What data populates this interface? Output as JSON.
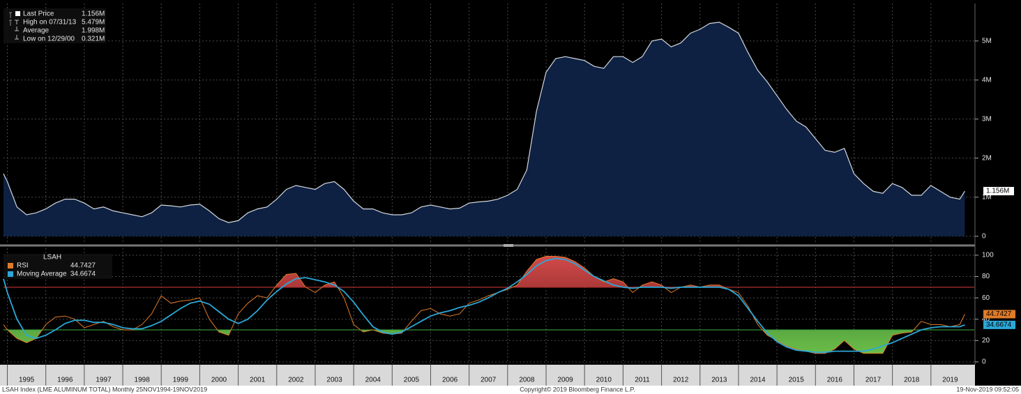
{
  "chart_data": [
    {
      "type": "area",
      "color": "#0e2142",
      "line_color": "#d4d8e0",
      "legend": [
        {
          "label": "Last Price",
          "text": "1.156M"
        },
        {
          "label": "High on 07/31/13",
          "text": "5.479M"
        },
        {
          "label": "Average",
          "text": "1.998M"
        },
        {
          "label": "Low on 12/29/00",
          "text": "0.321M"
        }
      ],
      "x": [
        1994.9,
        1995,
        1995.25,
        1995.5,
        1995.75,
        1996,
        1996.25,
        1996.5,
        1996.75,
        1997,
        1997.25,
        1997.5,
        1997.75,
        1998,
        1998.25,
        1998.5,
        1998.75,
        1999,
        1999.25,
        1999.5,
        1999.75,
        2000,
        2000.25,
        2000.5,
        2000.75,
        2001,
        2001.25,
        2001.5,
        2001.75,
        2002,
        2002.25,
        2002.5,
        2002.75,
        2003,
        2003.25,
        2003.5,
        2003.75,
        2004,
        2004.25,
        2004.5,
        2004.75,
        2005,
        2005.25,
        2005.5,
        2005.75,
        2006,
        2006.25,
        2006.5,
        2006.75,
        2007,
        2007.25,
        2007.5,
        2007.75,
        2008,
        2008.25,
        2008.5,
        2008.75,
        2009,
        2009.25,
        2009.5,
        2009.75,
        2010,
        2010.25,
        2010.5,
        2010.75,
        2011,
        2011.25,
        2011.5,
        2011.75,
        2012,
        2012.25,
        2012.5,
        2012.75,
        2013,
        2013.25,
        2013.5,
        2013.75,
        2014,
        2014.25,
        2014.5,
        2014.75,
        2015,
        2015.25,
        2015.5,
        2015.75,
        2016,
        2016.25,
        2016.5,
        2016.75,
        2017,
        2017.25,
        2017.5,
        2017.75,
        2018,
        2018.25,
        2018.5,
        2018.75,
        2019,
        2019.25,
        2019.5,
        2019.75,
        2019.88
      ],
      "values": [
        1.6,
        1.4,
        0.75,
        0.55,
        0.6,
        0.7,
        0.85,
        0.95,
        0.95,
        0.85,
        0.7,
        0.75,
        0.65,
        0.6,
        0.55,
        0.5,
        0.6,
        0.8,
        0.78,
        0.75,
        0.8,
        0.82,
        0.65,
        0.45,
        0.35,
        0.4,
        0.6,
        0.7,
        0.75,
        0.95,
        1.2,
        1.3,
        1.25,
        1.2,
        1.35,
        1.4,
        1.2,
        0.9,
        0.7,
        0.7,
        0.6,
        0.55,
        0.55,
        0.6,
        0.75,
        0.8,
        0.75,
        0.7,
        0.72,
        0.85,
        0.88,
        0.9,
        0.95,
        1.05,
        1.2,
        1.7,
        3.2,
        4.2,
        4.55,
        4.6,
        4.55,
        4.5,
        4.35,
        4.3,
        4.6,
        4.6,
        4.45,
        4.6,
        5.0,
        5.05,
        4.85,
        4.95,
        5.2,
        5.3,
        5.45,
        5.479,
        5.35,
        5.2,
        4.7,
        4.25,
        3.95,
        3.6,
        3.25,
        2.95,
        2.8,
        2.5,
        2.2,
        2.15,
        2.25,
        1.6,
        1.35,
        1.15,
        1.1,
        1.35,
        1.25,
        1.05,
        1.05,
        1.3,
        1.15,
        1.0,
        0.95,
        1.156
      ],
      "xlim": [
        1994.9,
        2020
      ],
      "xticks": [
        1995,
        1996,
        1997,
        1998,
        1999,
        2000,
        2001,
        2002,
        2003,
        2004,
        2005,
        2006,
        2007,
        2008,
        2009,
        2010,
        2011,
        2012,
        2013,
        2014,
        2015,
        2016,
        2017,
        2018,
        2019
      ],
      "ylim": [
        -0.2,
        5.96
      ],
      "yticks": [
        0,
        {
          "value": 1,
          "label": "1M"
        },
        {
          "value": 2,
          "label": "2M"
        },
        {
          "value": 3,
          "label": "3M"
        },
        {
          "value": 4,
          "label": "4M"
        },
        {
          "value": 5,
          "label": "5M"
        }
      ],
      "grid": true
    },
    {
      "type": "line",
      "title": "LSAH",
      "x": [
        1994.9,
        1995,
        1995.25,
        1995.5,
        1995.75,
        1996,
        1996.25,
        1996.5,
        1996.75,
        1997,
        1997.25,
        1997.5,
        1997.75,
        1998,
        1998.25,
        1998.5,
        1998.75,
        1999,
        1999.25,
        1999.5,
        1999.75,
        2000,
        2000.25,
        2000.5,
        2000.75,
        2001,
        2001.25,
        2001.5,
        2001.75,
        2002,
        2002.25,
        2002.5,
        2002.75,
        2003,
        2003.25,
        2003.5,
        2003.75,
        2004,
        2004.25,
        2004.5,
        2004.75,
        2005,
        2005.25,
        2005.5,
        2005.75,
        2006,
        2006.25,
        2006.5,
        2006.75,
        2007,
        2007.25,
        2007.5,
        2007.75,
        2008,
        2008.25,
        2008.5,
        2008.75,
        2009,
        2009.25,
        2009.5,
        2009.75,
        2010,
        2010.25,
        2010.5,
        2010.75,
        2011,
        2011.25,
        2011.5,
        2011.75,
        2012,
        2012.25,
        2012.5,
        2012.75,
        2013,
        2013.25,
        2013.5,
        2013.75,
        2014,
        2014.25,
        2014.5,
        2014.75,
        2015,
        2015.25,
        2015.5,
        2015.75,
        2016,
        2016.25,
        2016.5,
        2016.75,
        2017,
        2017.25,
        2017.5,
        2017.75,
        2018,
        2018.25,
        2018.5,
        2018.75,
        2019,
        2019.25,
        2019.5,
        2019.75,
        2019.88
      ],
      "series": [
        {
          "name": "RSI",
          "color": "#e07b28",
          "values": [
            35,
            30,
            22,
            18,
            22,
            35,
            42,
            43,
            40,
            32,
            35,
            38,
            33,
            30,
            30,
            35,
            45,
            62,
            55,
            57,
            58,
            60,
            40,
            28,
            25,
            45,
            55,
            62,
            60,
            72,
            82,
            83,
            70,
            65,
            72,
            75,
            60,
            35,
            28,
            30,
            27,
            26,
            27,
            38,
            48,
            50,
            45,
            43,
            45,
            55,
            58,
            62,
            65,
            68,
            72,
            85,
            96,
            99,
            99,
            98,
            94,
            88,
            80,
            75,
            78,
            75,
            65,
            72,
            75,
            72,
            65,
            70,
            72,
            70,
            72,
            72,
            68,
            65,
            52,
            35,
            25,
            20,
            15,
            12,
            10,
            8,
            8,
            12,
            20,
            12,
            8,
            8,
            8,
            25,
            27,
            28,
            38,
            35,
            35,
            33,
            35,
            44.7427
          ]
        },
        {
          "name": "Moving Average",
          "color": "#2ba8d8",
          "values": [
            78,
            65,
            40,
            25,
            22,
            25,
            30,
            36,
            39,
            39,
            37,
            37,
            35,
            32,
            31,
            31,
            34,
            38,
            44,
            50,
            55,
            57,
            54,
            47,
            40,
            36,
            40,
            48,
            58,
            66,
            73,
            78,
            79,
            77,
            75,
            72,
            66,
            56,
            44,
            33,
            28,
            26,
            28,
            33,
            38,
            43,
            46,
            48,
            51,
            53,
            56,
            60,
            65,
            69,
            75,
            82,
            90,
            95,
            97,
            96,
            92,
            86,
            80,
            76,
            72,
            70,
            69,
            70,
            70,
            70,
            69,
            70,
            70,
            70,
            70,
            70,
            68,
            62,
            50,
            38,
            27,
            19,
            14,
            11,
            10,
            9,
            9,
            10,
            10,
            10,
            10,
            12,
            15,
            18,
            22,
            26,
            30,
            32,
            33,
            33,
            33,
            34.6674
          ]
        }
      ],
      "levels": [
        {
          "value": 70,
          "color": "#b03030"
        },
        {
          "value": 30,
          "color": "#3aa040"
        }
      ],
      "xlim": [
        1994.9,
        2020
      ],
      "xticks": [
        1995,
        1996,
        1997,
        1998,
        1999,
        2000,
        2001,
        2002,
        2003,
        2004,
        2005,
        2006,
        2007,
        2008,
        2009,
        2010,
        2011,
        2012,
        2013,
        2014,
        2015,
        2016,
        2017,
        2018,
        2019
      ],
      "ylim": [
        -2,
        106.5
      ],
      "yticks": [
        0,
        20,
        40,
        60,
        80,
        100
      ],
      "grid": true
    }
  ],
  "footer": {
    "left": "LSAH Index (LME ALUMINUM TOTAL)  Monthly 25NOV1994-19NOV2019",
    "center": "Copyright© 2019 Bloomberg Finance L.P.",
    "right": "19-Nov-2019 09:52:05"
  }
}
